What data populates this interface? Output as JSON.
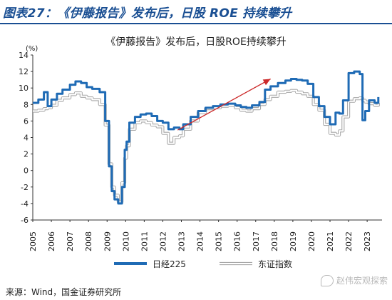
{
  "figure_label": "图表27：《伊藤报告》发布后，日股 ROE 持续攀升",
  "source": "来源：Wind，国金证券研究所",
  "watermark": "赵伟宏观探索",
  "colors": {
    "title": "#1a4f93",
    "nikkei": "#1f6bb5",
    "topix": "#a8a8a8",
    "arrow": "#cc2a2a"
  },
  "chart_data": {
    "type": "line",
    "title": "《伊藤报告》发布后，日股ROE持续攀升",
    "unit_label": "(%)",
    "ylim": [
      -6,
      14
    ],
    "yticks": [
      -6,
      -4,
      -2,
      0,
      2,
      4,
      6,
      8,
      10,
      12,
      14
    ],
    "xlim": [
      2005,
      2023.8
    ],
    "xticks": [
      "2005",
      "2006",
      "2007",
      "2008",
      "2009",
      "2010",
      "2011",
      "2012",
      "2013",
      "2014",
      "2015",
      "2016",
      "2017",
      "2018",
      "2019",
      "2020",
      "2021",
      "2022",
      "2023"
    ],
    "grid": false,
    "legend_position": "bottom",
    "series": [
      {
        "name": "日经225",
        "x": [
          2005.0,
          2005.3,
          2005.6,
          2005.8,
          2006.0,
          2006.3,
          2006.6,
          2007.0,
          2007.3,
          2007.6,
          2007.9,
          2008.2,
          2008.6,
          2008.9,
          2009.1,
          2009.25,
          2009.4,
          2009.6,
          2009.8,
          2009.95,
          2010.05,
          2010.2,
          2010.5,
          2010.8,
          2011.1,
          2011.4,
          2011.7,
          2012.0,
          2012.3,
          2012.6,
          2012.9,
          2013.1,
          2013.5,
          2013.9,
          2014.3,
          2014.7,
          2015.1,
          2015.5,
          2015.9,
          2016.2,
          2016.5,
          2016.8,
          2017.2,
          2017.5,
          2017.8,
          2018.2,
          2018.6,
          2018.9,
          2019.2,
          2019.5,
          2019.8,
          2020.1,
          2020.4,
          2020.7,
          2021.0,
          2021.3,
          2021.5,
          2021.7,
          2022.0,
          2022.3,
          2022.6,
          2022.75,
          2022.9,
          2023.1,
          2023.4,
          2023.6
        ],
        "values": [
          8.2,
          8.6,
          9.5,
          7.8,
          8.6,
          9.3,
          9.8,
          10.4,
          10.8,
          10.6,
          10.1,
          9.9,
          9.5,
          6.0,
          0.5,
          -2.5,
          -3.5,
          -4.0,
          -2.0,
          2.5,
          3.5,
          5.8,
          6.5,
          6.8,
          6.9,
          6.6,
          6.0,
          5.8,
          5.0,
          5.2,
          5.0,
          5.6,
          6.5,
          7.2,
          7.6,
          7.8,
          8.0,
          8.1,
          7.9,
          7.7,
          7.6,
          7.9,
          8.3,
          9.8,
          10.2,
          10.6,
          10.9,
          11.1,
          11.0,
          10.9,
          10.5,
          8.9,
          7.8,
          6.5,
          5.6,
          7.0,
          6.9,
          8.5,
          11.8,
          12.0,
          11.7,
          6.1,
          7.2,
          8.5,
          8.2,
          8.9
        ]
      },
      {
        "name": "东证指数",
        "x": [
          2005.0,
          2005.3,
          2005.6,
          2005.8,
          2006.0,
          2006.3,
          2006.6,
          2007.0,
          2007.3,
          2007.6,
          2007.9,
          2008.2,
          2008.6,
          2008.9,
          2009.1,
          2009.25,
          2009.4,
          2009.6,
          2009.8,
          2009.95,
          2010.05,
          2010.2,
          2010.5,
          2010.8,
          2011.1,
          2011.4,
          2011.7,
          2012.0,
          2012.3,
          2012.6,
          2012.9,
          2013.1,
          2013.5,
          2013.9,
          2014.3,
          2014.7,
          2015.1,
          2015.5,
          2015.9,
          2016.2,
          2016.5,
          2016.8,
          2017.2,
          2017.5,
          2017.8,
          2018.2,
          2018.6,
          2018.9,
          2019.2,
          2019.5,
          2019.8,
          2020.1,
          2020.4,
          2020.7,
          2021.0,
          2021.3,
          2021.5,
          2021.7,
          2022.0,
          2022.3,
          2022.6,
          2022.75,
          2022.9,
          2023.1,
          2023.4,
          2023.6
        ],
        "values": [
          7.2,
          7.3,
          7.5,
          7.6,
          7.9,
          8.5,
          8.8,
          9.2,
          9.4,
          9.0,
          8.8,
          8.6,
          8.0,
          5.5,
          0.8,
          -2.0,
          -3.0,
          -3.8,
          -1.5,
          1.5,
          3.0,
          5.0,
          5.8,
          6.0,
          5.8,
          5.5,
          5.3,
          4.5,
          3.3,
          4.0,
          4.2,
          5.0,
          6.0,
          7.0,
          7.5,
          7.6,
          7.8,
          7.9,
          7.6,
          7.3,
          7.2,
          7.5,
          8.0,
          8.6,
          9.0,
          9.5,
          9.6,
          9.7,
          9.5,
          9.3,
          9.0,
          8.0,
          7.3,
          5.6,
          4.5,
          4.3,
          4.8,
          6.5,
          8.4,
          8.7,
          8.8,
          8.5,
          8.3,
          8.1,
          7.9,
          8.2
        ]
      }
    ],
    "annotation": {
      "type": "arrow",
      "from": [
        2012.8,
        4.9
      ],
      "to": [
        2017.8,
        11.1
      ]
    }
  }
}
